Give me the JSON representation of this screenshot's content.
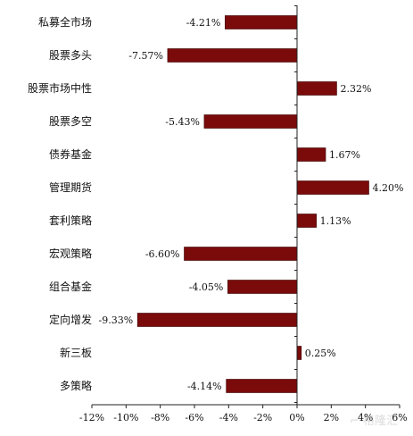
{
  "chart_data": {
    "type": "bar",
    "orientation": "horizontal",
    "categories": [
      "私募全市场",
      "股票多头",
      "股票市场中性",
      "股票多空",
      "债券基金",
      "管理期货",
      "套利策略",
      "宏观策略",
      "组合基金",
      "定向增发",
      "新三板",
      "多策略"
    ],
    "values": [
      -4.21,
      -7.57,
      2.32,
      -5.43,
      1.67,
      4.2,
      1.13,
      -6.6,
      -4.05,
      -9.33,
      0.25,
      -4.14
    ],
    "value_labels": [
      "-4.21%",
      "-7.57%",
      "2.32%",
      "-5.43%",
      "1.67%",
      "4.20%",
      "1.13%",
      "-6.60%",
      "-4.05%",
      "-9.33%",
      "0.25%",
      "-4.14%"
    ],
    "xlim": [
      -12,
      6
    ],
    "xticks": [
      -12,
      -10,
      -8,
      -6,
      -4,
      -2,
      0,
      2,
      4,
      6
    ],
    "xtick_labels": [
      "-12%",
      "-10%",
      "-8%",
      "-6%",
      "-4%",
      "-2%",
      "0%",
      "2%",
      "4%",
      "6%"
    ],
    "bar_color": "#7b0a0a",
    "title": "",
    "xlabel": "",
    "ylabel": "",
    "grid": false,
    "legend": "none"
  }
}
